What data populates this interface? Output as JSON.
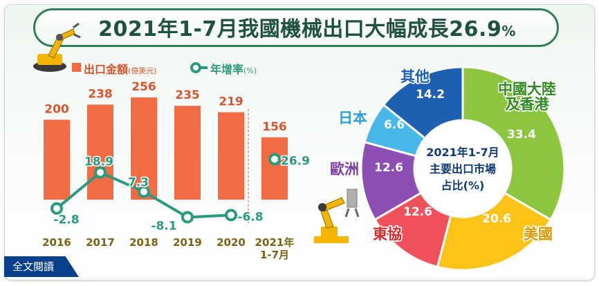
{
  "title": {
    "main": "2021年1-7月我國機械出口大幅成長26.9",
    "suffix": "%"
  },
  "fulltext_label": "全文閱讀",
  "legend": {
    "export_label": "出口金額",
    "export_unit": "(億美元)",
    "growth_label": "年增率",
    "growth_unit": "(%)"
  },
  "colors": {
    "bar": "#f26b43",
    "line": "#2b9a7e",
    "year_label": "#7a6214",
    "value_label": "#d9552f"
  },
  "chart_data": [
    {
      "type": "bar",
      "categories": [
        "2016",
        "2017",
        "2018",
        "2019",
        "2020",
        "2021年 1-7月"
      ],
      "series": [
        {
          "name": "出口金額",
          "unit": "億美元",
          "values": [
            200,
            238,
            256,
            235,
            219,
            156
          ],
          "labels": [
            "200",
            "238",
            "256",
            "235",
            "219",
            "156"
          ]
        },
        {
          "name": "年增率",
          "unit": "%",
          "type": "line",
          "values": [
            -2.8,
            18.9,
            7.3,
            -8.1,
            -6.8,
            26.9
          ],
          "labels": [
            "-2.8",
            "18.9",
            "7.3",
            "-8.1",
            "-6.8",
            "26.9"
          ]
        }
      ],
      "note": "2021 value is standalone (not connected to the line)"
    },
    {
      "type": "pie",
      "center_label": [
        "2021年1-7月",
        "主要出口市場",
        "占比(%)"
      ],
      "slices": [
        {
          "name": "中國大陸 及香港",
          "name_lines": [
            "中國大陸",
            "及香港"
          ],
          "value": 33.4,
          "label": "33.4",
          "color": "#8cc63f",
          "name_color": "#2f8a1f"
        },
        {
          "name": "美國",
          "name_lines": [
            "美國"
          ],
          "value": 20.6,
          "label": "20.6",
          "color": "#fcc419",
          "name_color": "#d99a00"
        },
        {
          "name": "東協",
          "name_lines": [
            "東協"
          ],
          "value": 12.6,
          "label": "12.6",
          "color": "#f1515b",
          "name_color": "#d32b2b"
        },
        {
          "name": "歐洲",
          "name_lines": [
            "歐洲"
          ],
          "value": 12.6,
          "label": "12.6",
          "color": "#8e4fb5",
          "name_color": "#7b3fa6"
        },
        {
          "name": "日本",
          "name_lines": [
            "日本"
          ],
          "value": 6.6,
          "label": "6.6",
          "color": "#47b8e8",
          "name_color": "#2a9fd8"
        },
        {
          "name": "其他",
          "name_lines": [
            "其他"
          ],
          "value": 14.2,
          "label": "14.2",
          "color": "#1d5fb0",
          "name_color": "#1d5fb0"
        }
      ]
    }
  ]
}
